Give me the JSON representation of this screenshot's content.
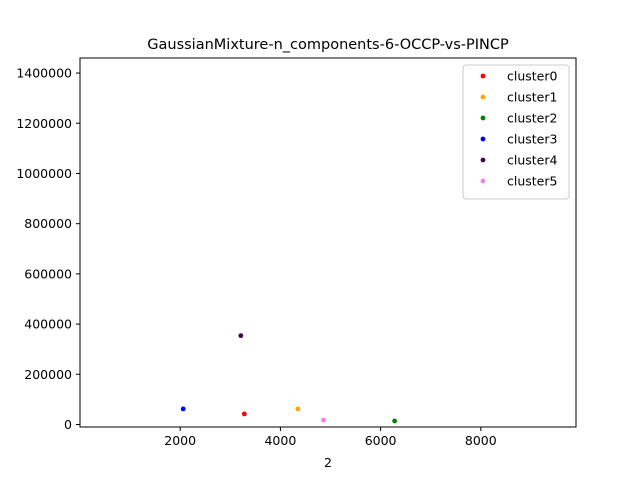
{
  "chart_data": {
    "type": "scatter",
    "title": "GaussianMixture-n_components-6-OCCP-vs-PINCP",
    "xlabel": "2",
    "ylabel": "",
    "xlim": [
      0,
      9900
    ],
    "ylim": [
      -10000,
      1460000
    ],
    "x_ticks": [
      2000,
      4000,
      6000,
      8000
    ],
    "x_tick_labels": [
      "2000",
      "4000",
      "6000",
      "8000"
    ],
    "y_ticks": [
      0,
      200000,
      400000,
      600000,
      800000,
      1000000,
      1200000,
      1400000
    ],
    "y_tick_labels": [
      "0",
      "200000",
      "400000",
      "600000",
      "800000",
      "1000000",
      "1200000",
      "1400000"
    ],
    "grid": false,
    "legend_position": "top-right",
    "series": [
      {
        "name": "cluster0",
        "color": "#ff0000",
        "points": [
          [
            3280,
            42000
          ]
        ]
      },
      {
        "name": "cluster1",
        "color": "#ffa500",
        "points": [
          [
            4350,
            62000
          ]
        ]
      },
      {
        "name": "cluster2",
        "color": "#008000",
        "points": [
          [
            6280,
            14000
          ]
        ]
      },
      {
        "name": "cluster3",
        "color": "#0000ff",
        "points": [
          [
            2060,
            62000
          ]
        ]
      },
      {
        "name": "cluster4",
        "color": "#4b0055",
        "points": [
          [
            3210,
            354000
          ]
        ]
      },
      {
        "name": "cluster5",
        "color": "#ee82ee",
        "points": [
          [
            4860,
            18000
          ]
        ]
      }
    ]
  }
}
